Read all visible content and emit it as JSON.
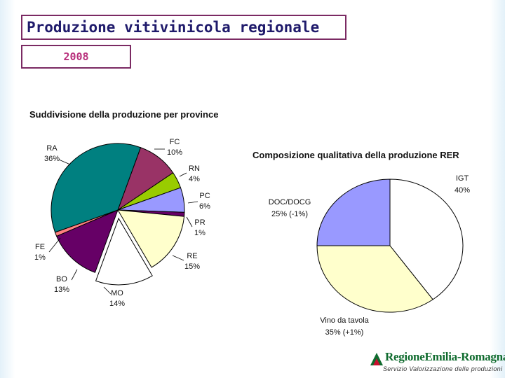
{
  "header": {
    "title": "Produzione vitivinicola regionale",
    "year": "2008"
  },
  "chart_data": [
    {
      "type": "pie",
      "title": "Suddivisione della produzione per province",
      "categories": [
        "RA",
        "FC",
        "RN",
        "PC",
        "PR",
        "RE",
        "MO",
        "BO",
        "FE"
      ],
      "values": [
        36,
        10,
        4,
        6,
        1,
        15,
        14,
        13,
        1
      ],
      "labels": [
        "36%",
        "10%",
        "4%",
        "6%",
        "1%",
        "15%",
        "14%",
        "13%",
        "1%"
      ],
      "colors": [
        "#008080",
        "#993366",
        "#99cc00",
        "#9999ff",
        "#660066",
        "#ffffcc",
        "#ffffff",
        "#660066",
        "#ff8080"
      ],
      "legend": "none"
    },
    {
      "type": "pie",
      "title": "Composizione qualitativa della produzione RER",
      "categories": [
        "IGT",
        "Vino da tavola",
        "DOC/DOCG"
      ],
      "values": [
        40,
        35,
        25
      ],
      "labels": [
        "40%",
        "35% (+1%)",
        "25% (-1%)"
      ],
      "colors": [
        "#ffffff",
        "#ffffcc",
        "#9999ff"
      ],
      "legend": "none"
    }
  ],
  "logo": {
    "name": "RegioneEmilia-Romagna",
    "subtitle": "Servizio Valorizzazione delle produzioni"
  }
}
